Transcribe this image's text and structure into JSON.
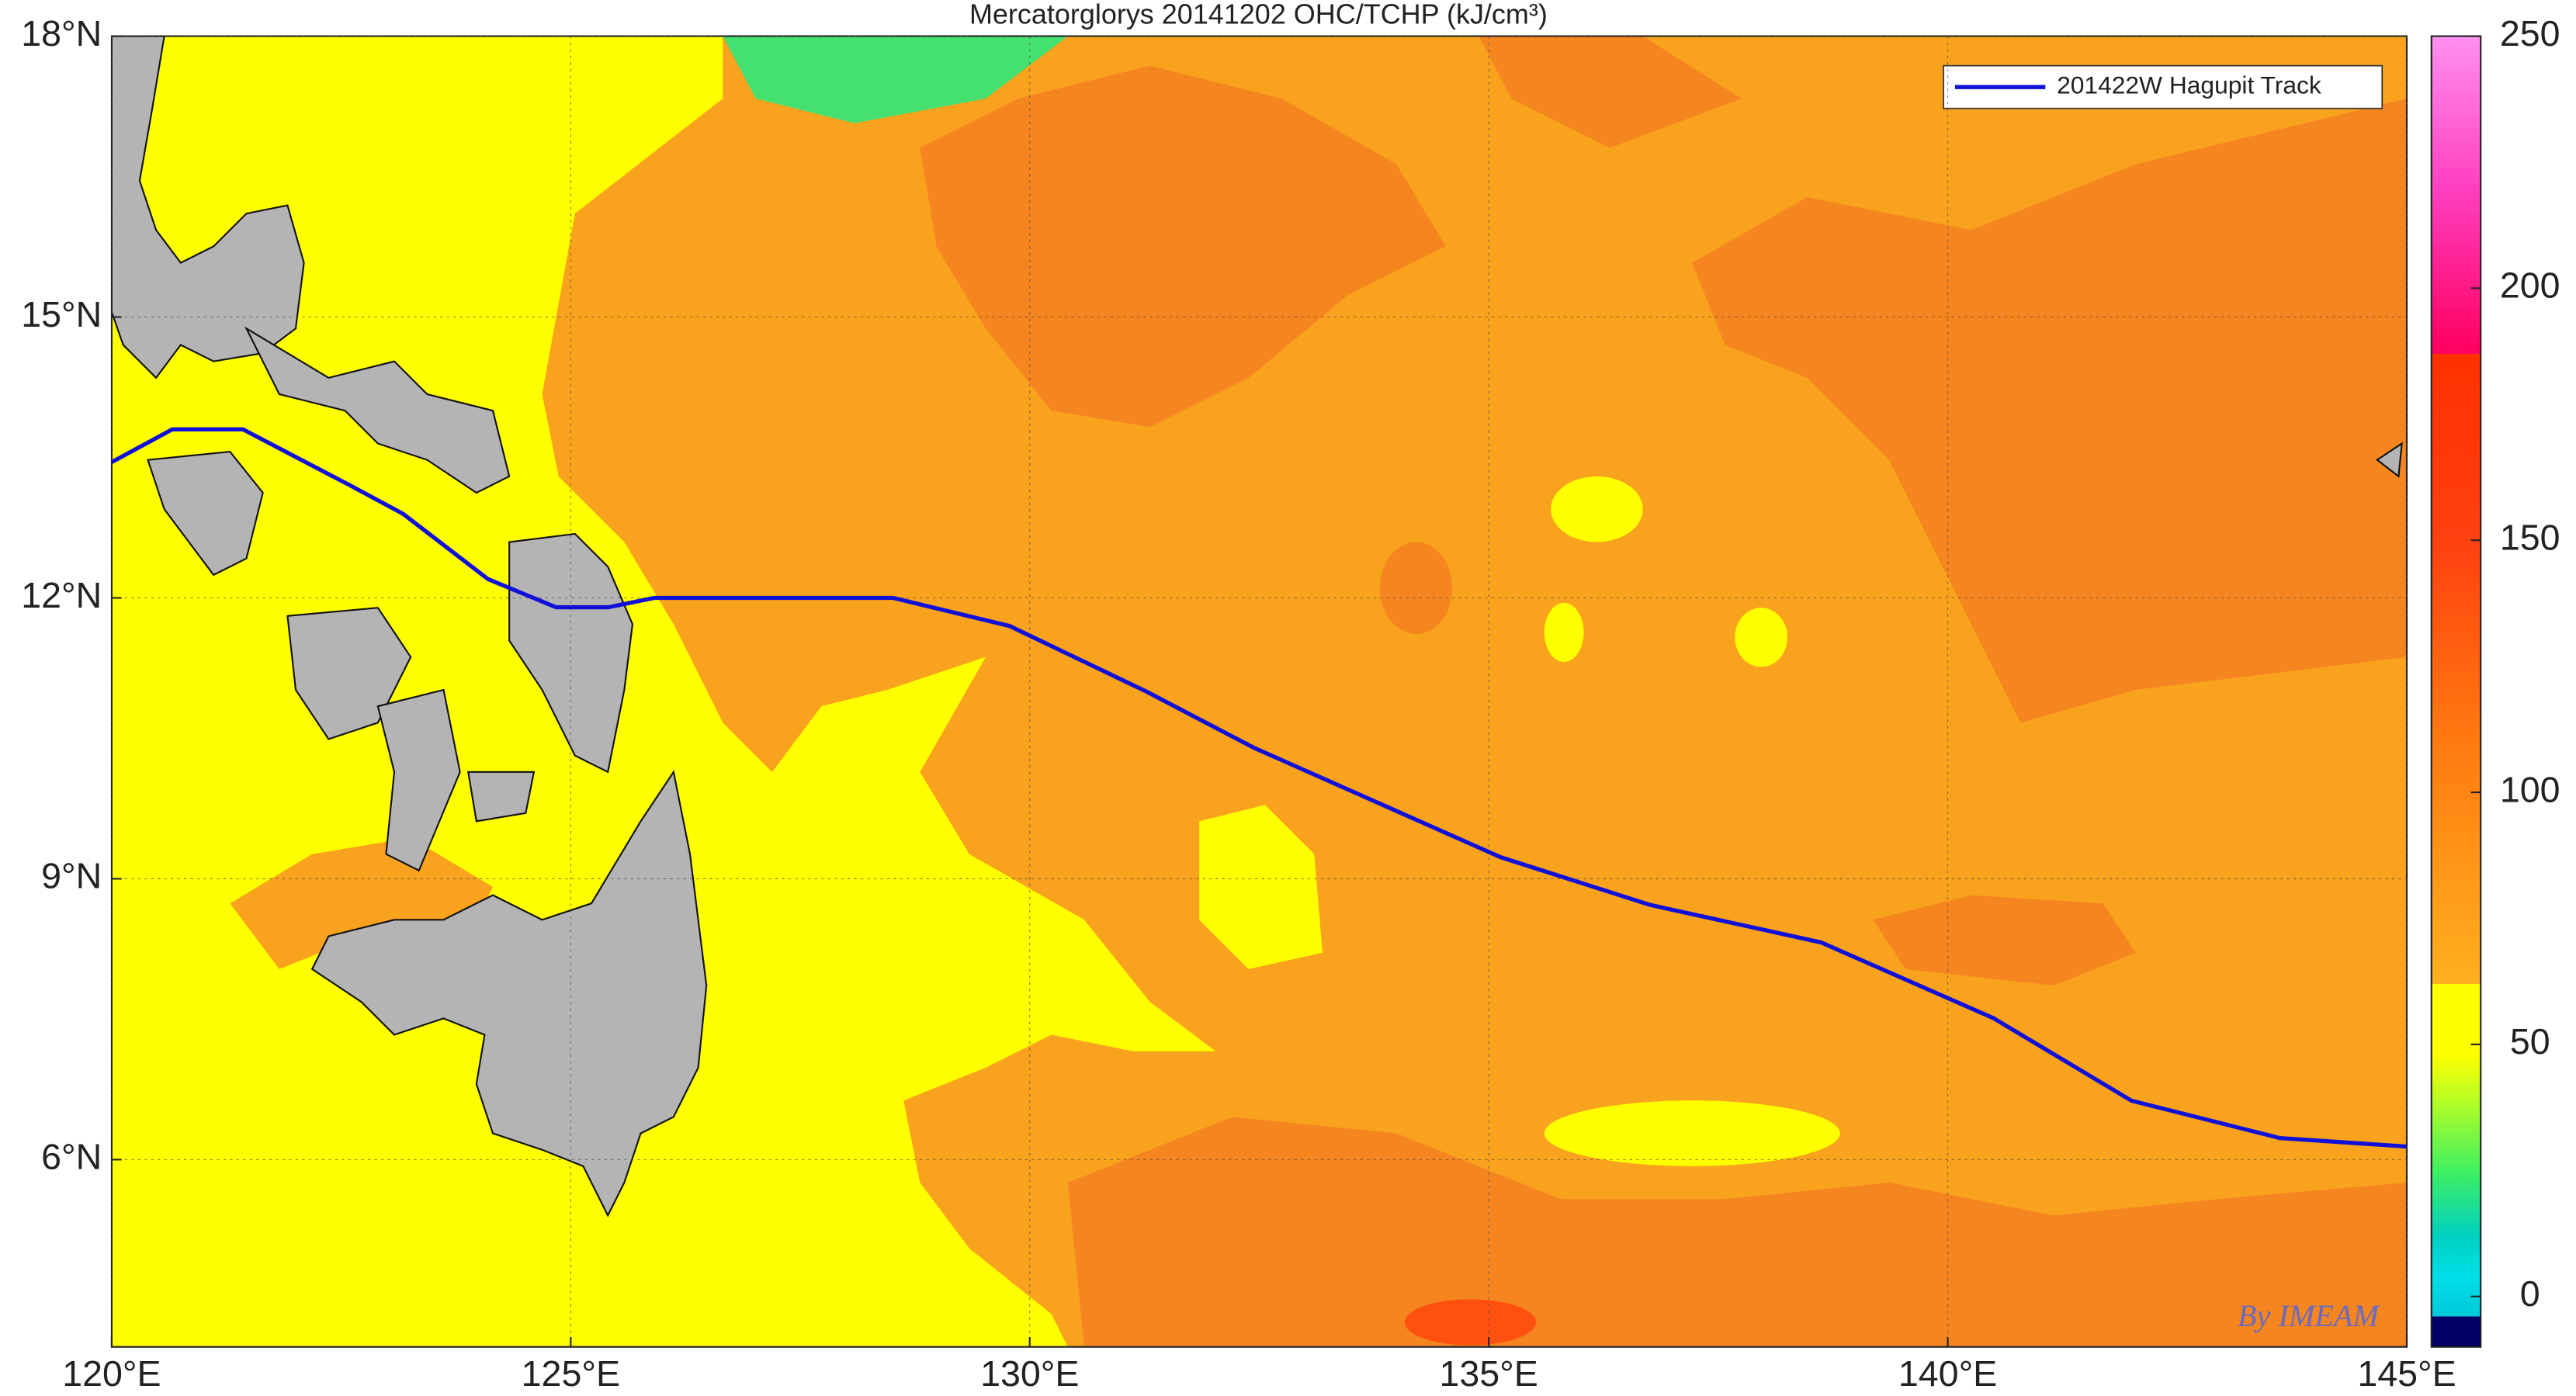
{
  "chart_data": {
    "type": "map",
    "title": "Mercatorglorys 20141202 OHC/TCHP (kJ/cm³)",
    "xlim": [
      120,
      145
    ],
    "ylim": [
      4,
      18
    ],
    "xticks": [
      {
        "value": 120,
        "label": "120°E"
      },
      {
        "value": 125,
        "label": "125°E"
      },
      {
        "value": 130,
        "label": "130°E"
      },
      {
        "value": 135,
        "label": "135°E"
      },
      {
        "value": 140,
        "label": "140°E"
      },
      {
        "value": 145,
        "label": "145°E"
      }
    ],
    "yticks": [
      {
        "value": 6,
        "label": "6°N"
      },
      {
        "value": 9,
        "label": "9°N"
      },
      {
        "value": 12,
        "label": "12°N"
      },
      {
        "value": 15,
        "label": "15°N"
      },
      {
        "value": 18,
        "label": "18°N"
      }
    ],
    "grid": true,
    "legend": "upper right",
    "series": [
      {
        "name": "201422W Hagupit Track",
        "color": "#1010d8",
        "x": [
          120.0,
          120.66,
          121.43,
          122.6,
          123.17,
          124.1,
          124.84,
          125.41,
          125.91,
          128.51,
          129.78,
          131.27,
          132.44,
          135.13,
          136.76,
          138.62,
          140.5,
          142.0,
          143.62,
          145.0
        ],
        "values": [
          13.45,
          13.8,
          13.8,
          13.2,
          12.9,
          12.2,
          11.9,
          11.9,
          12.0,
          12.0,
          11.7,
          11.0,
          10.4,
          9.23,
          8.72,
          8.32,
          7.51,
          6.63,
          6.23,
          6.14
        ]
      }
    ],
    "colorbar": {
      "clim": [
        -10,
        250
      ],
      "ticks": [
        0,
        50,
        100,
        150,
        200,
        250
      ],
      "colormap": [
        [
          -10,
          "#000066"
        ],
        [
          -4,
          "#000066"
        ],
        [
          -4,
          "#00c8d8"
        ],
        [
          4,
          "#00e0e8"
        ],
        [
          12,
          "#00d0c0"
        ],
        [
          25,
          "#40f060"
        ],
        [
          40,
          "#c0ff20"
        ],
        [
          48,
          "#ffff00"
        ],
        [
          62,
          "#ffff00"
        ],
        [
          62,
          "#ffb020"
        ],
        [
          110,
          "#ff7a10"
        ],
        [
          150,
          "#ff4010"
        ],
        [
          187,
          "#ff3000"
        ],
        [
          187,
          "#ff0060"
        ],
        [
          220,
          "#ff40c0"
        ],
        [
          250,
          "#ff90f0"
        ]
      ]
    },
    "annotation": "By IMEAM"
  }
}
